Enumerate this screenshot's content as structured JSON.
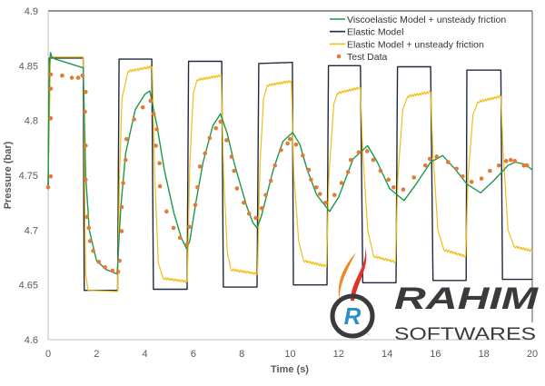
{
  "chart_data": {
    "type": "line",
    "title": "",
    "xlabel": "Time (s)",
    "ylabel": "Pressure (bar)",
    "xlim": [
      0,
      20
    ],
    "ylim": [
      4.6,
      4.9
    ],
    "xticks": [
      0,
      2,
      4,
      6,
      8,
      10,
      12,
      14,
      16,
      18,
      20
    ],
    "yticks": [
      4.6,
      4.65,
      4.7,
      4.75,
      4.8,
      4.85,
      4.9
    ],
    "ytick_labels": [
      "4.6",
      "4.65",
      "4.7",
      "4.75",
      "4.8",
      "4.85",
      "4.9"
    ],
    "grid": false,
    "legend_position": "top-right",
    "series": [
      {
        "name": "Viscoelastic Model + unsteady friction",
        "kind": "line",
        "color": "#1a9a4a",
        "points": [
          [
            0,
            4.74
          ],
          [
            0.05,
            4.85
          ],
          [
            0.1,
            4.862
          ],
          [
            0.15,
            4.858
          ],
          [
            0.3,
            4.856
          ],
          [
            1.45,
            4.848
          ],
          [
            1.55,
            4.75
          ],
          [
            1.7,
            4.7
          ],
          [
            2.0,
            4.672
          ],
          [
            2.4,
            4.664
          ],
          [
            2.85,
            4.66
          ],
          [
            3.0,
            4.72
          ],
          [
            3.2,
            4.77
          ],
          [
            3.6,
            4.81
          ],
          [
            4.0,
            4.824
          ],
          [
            4.2,
            4.827
          ],
          [
            4.5,
            4.795
          ],
          [
            4.8,
            4.755
          ],
          [
            5.2,
            4.715
          ],
          [
            5.5,
            4.693
          ],
          [
            5.72,
            4.683
          ],
          [
            5.85,
            4.69
          ],
          [
            6.1,
            4.725
          ],
          [
            6.4,
            4.762
          ],
          [
            6.8,
            4.795
          ],
          [
            7.12,
            4.806
          ],
          [
            7.4,
            4.788
          ],
          [
            7.7,
            4.76
          ],
          [
            8.2,
            4.722
          ],
          [
            8.45,
            4.707
          ],
          [
            8.63,
            4.702
          ],
          [
            8.8,
            4.712
          ],
          [
            9.3,
            4.755
          ],
          [
            9.7,
            4.781
          ],
          [
            10.1,
            4.789
          ],
          [
            10.4,
            4.778
          ],
          [
            10.7,
            4.755
          ],
          [
            11.1,
            4.732
          ],
          [
            11.63,
            4.717
          ],
          [
            12.0,
            4.73
          ],
          [
            12.6,
            4.765
          ],
          [
            13.2,
            4.777
          ],
          [
            13.6,
            4.762
          ],
          [
            14.1,
            4.738
          ],
          [
            14.7,
            4.727
          ],
          [
            15.2,
            4.742
          ],
          [
            15.8,
            4.762
          ],
          [
            16.3,
            4.768
          ],
          [
            16.8,
            4.756
          ],
          [
            17.3,
            4.742
          ],
          [
            17.87,
            4.734
          ],
          [
            18.4,
            4.745
          ],
          [
            19.0,
            4.759
          ],
          [
            19.3,
            4.762
          ],
          [
            19.7,
            4.76
          ],
          [
            20.0,
            4.755
          ]
        ]
      },
      {
        "name": "Elastic Model",
        "kind": "line",
        "color": "#1f2a3c",
        "points": [
          [
            0,
            4.74
          ],
          [
            0.05,
            4.857
          ],
          [
            1.45,
            4.857
          ],
          [
            1.49,
            4.645
          ],
          [
            2.87,
            4.645
          ],
          [
            2.93,
            4.856
          ],
          [
            4.28,
            4.856
          ],
          [
            4.35,
            4.646
          ],
          [
            5.74,
            4.646
          ],
          [
            5.8,
            4.854
          ],
          [
            7.17,
            4.854
          ],
          [
            7.24,
            4.648
          ],
          [
            8.63,
            4.648
          ],
          [
            8.7,
            4.852
          ],
          [
            10.09,
            4.853
          ],
          [
            10.13,
            4.65
          ],
          [
            11.52,
            4.65
          ],
          [
            11.58,
            4.85
          ],
          [
            12.9,
            4.85
          ],
          [
            13.0,
            4.652
          ],
          [
            14.37,
            4.652
          ],
          [
            14.43,
            4.849
          ],
          [
            15.8,
            4.849
          ],
          [
            15.9,
            4.654
          ],
          [
            17.27,
            4.654
          ],
          [
            17.3,
            4.846
          ],
          [
            18.7,
            4.846
          ],
          [
            18.77,
            4.655
          ],
          [
            20.0,
            4.655
          ]
        ]
      },
      {
        "name": "Elastic Model + unsteady friction",
        "kind": "line",
        "color": "#f2be1a",
        "ripple": {
          "amplitude": 0.002,
          "period": 0.1,
          "segments": [
            [
              3.3,
              4.3
            ],
            [
              4.75,
              5.75
            ],
            [
              6.15,
              7.15
            ],
            [
              7.55,
              8.65
            ],
            [
              9.05,
              10.05
            ],
            [
              10.55,
              11.5
            ],
            [
              11.95,
              12.9
            ],
            [
              13.45,
              14.35
            ],
            [
              14.85,
              15.8
            ],
            [
              16.35,
              17.25
            ],
            [
              17.75,
              18.7
            ],
            [
              19.25,
              20.0
            ]
          ]
        },
        "points": [
          [
            0,
            4.745
          ],
          [
            0.1,
            4.858
          ],
          [
            1.45,
            4.858
          ],
          [
            1.55,
            4.66
          ],
          [
            1.65,
            4.645
          ],
          [
            2.87,
            4.644
          ],
          [
            2.95,
            4.75
          ],
          [
            3.05,
            4.82
          ],
          [
            3.3,
            4.845
          ],
          [
            4.3,
            4.849
          ],
          [
            4.4,
            4.75
          ],
          [
            4.55,
            4.67
          ],
          [
            4.75,
            4.656
          ],
          [
            5.75,
            4.653
          ],
          [
            5.85,
            4.76
          ],
          [
            6.0,
            4.825
          ],
          [
            6.15,
            4.837
          ],
          [
            7.15,
            4.841
          ],
          [
            7.25,
            4.75
          ],
          [
            7.4,
            4.68
          ],
          [
            7.55,
            4.664
          ],
          [
            8.65,
            4.66
          ],
          [
            8.75,
            4.76
          ],
          [
            8.9,
            4.82
          ],
          [
            9.05,
            4.832
          ],
          [
            10.05,
            4.836
          ],
          [
            10.15,
            4.75
          ],
          [
            10.35,
            4.69
          ],
          [
            10.55,
            4.672
          ],
          [
            11.5,
            4.667
          ],
          [
            11.6,
            4.75
          ],
          [
            11.8,
            4.815
          ],
          [
            11.95,
            4.825
          ],
          [
            12.9,
            4.83
          ],
          [
            13.0,
            4.77
          ],
          [
            13.2,
            4.7
          ],
          [
            13.45,
            4.676
          ],
          [
            14.35,
            4.671
          ],
          [
            14.45,
            4.75
          ],
          [
            14.65,
            4.81
          ],
          [
            14.85,
            4.822
          ],
          [
            15.8,
            4.826
          ],
          [
            15.9,
            4.77
          ],
          [
            16.1,
            4.7
          ],
          [
            16.35,
            4.682
          ],
          [
            17.25,
            4.676
          ],
          [
            17.35,
            4.75
          ],
          [
            17.55,
            4.805
          ],
          [
            17.75,
            4.817
          ],
          [
            18.7,
            4.822
          ],
          [
            18.8,
            4.77
          ],
          [
            19.0,
            4.7
          ],
          [
            19.25,
            4.685
          ],
          [
            20.0,
            4.681
          ]
        ]
      },
      {
        "name": "Test Data",
        "kind": "scatter",
        "color": "#e07b39",
        "points": [
          [
            0,
            4.739
          ],
          [
            0.11,
            4.749
          ],
          [
            0.11,
            4.802
          ],
          [
            0.11,
            4.829
          ],
          [
            0.11,
            4.842
          ],
          [
            0.58,
            4.841
          ],
          [
            0.98,
            4.839
          ],
          [
            1.24,
            4.839
          ],
          [
            1.42,
            4.841
          ],
          [
            1.55,
            4.826
          ],
          [
            1.52,
            4.808
          ],
          [
            1.55,
            4.777
          ],
          [
            1.55,
            4.746
          ],
          [
            1.6,
            4.712
          ],
          [
            1.68,
            4.702
          ],
          [
            1.73,
            4.69
          ],
          [
            1.86,
            4.681
          ],
          [
            2.09,
            4.671
          ],
          [
            2.35,
            4.666
          ],
          [
            2.66,
            4.663
          ],
          [
            2.89,
            4.662
          ],
          [
            2.95,
            4.672
          ],
          [
            3.04,
            4.699
          ],
          [
            3.04,
            4.721
          ],
          [
            3.1,
            4.743
          ],
          [
            3.2,
            4.764
          ],
          [
            3.24,
            4.783
          ],
          [
            3.55,
            4.801
          ],
          [
            3.91,
            4.812
          ],
          [
            4.23,
            4.818
          ],
          [
            4.36,
            4.806
          ],
          [
            4.49,
            4.792
          ],
          [
            4.45,
            4.777
          ],
          [
            4.6,
            4.761
          ],
          [
            4.62,
            4.74
          ],
          [
            4.89,
            4.717
          ],
          [
            5.18,
            4.702
          ],
          [
            5.45,
            4.693
          ],
          [
            5.74,
            4.687
          ],
          [
            5.83,
            4.703
          ],
          [
            6.08,
            4.723
          ],
          [
            6.17,
            4.739
          ],
          [
            6.27,
            4.758
          ],
          [
            6.48,
            4.77
          ],
          [
            6.67,
            4.784
          ],
          [
            6.93,
            4.793
          ],
          [
            7.12,
            4.799
          ],
          [
            7.37,
            4.782
          ],
          [
            7.58,
            4.767
          ],
          [
            7.68,
            4.754
          ],
          [
            7.8,
            4.738
          ],
          [
            8.08,
            4.725
          ],
          [
            8.3,
            4.715
          ],
          [
            8.58,
            4.711
          ],
          [
            8.83,
            4.72
          ],
          [
            8.99,
            4.732
          ],
          [
            9.2,
            4.745
          ],
          [
            9.37,
            4.759
          ],
          [
            9.62,
            4.773
          ],
          [
            9.89,
            4.779
          ],
          [
            9.99,
            4.783
          ],
          [
            10.24,
            4.778
          ],
          [
            10.52,
            4.768
          ],
          [
            10.77,
            4.755
          ],
          [
            10.86,
            4.746
          ],
          [
            11.08,
            4.739
          ],
          [
            11.23,
            4.733
          ],
          [
            11.46,
            4.725
          ],
          [
            11.83,
            4.732
          ],
          [
            12.12,
            4.743
          ],
          [
            12.39,
            4.753
          ],
          [
            12.5,
            4.764
          ],
          [
            12.83,
            4.771
          ],
          [
            13.18,
            4.772
          ],
          [
            13.43,
            4.764
          ],
          [
            13.73,
            4.754
          ],
          [
            14.06,
            4.746
          ],
          [
            14.27,
            4.739
          ],
          [
            14.67,
            4.737
          ],
          [
            15.11,
            4.748
          ],
          [
            15.58,
            4.759
          ],
          [
            15.77,
            4.765
          ],
          [
            16.05,
            4.767
          ],
          [
            16.52,
            4.762
          ],
          [
            16.87,
            4.756
          ],
          [
            17.12,
            4.749
          ],
          [
            17.49,
            4.744
          ],
          [
            17.9,
            4.747
          ],
          [
            18.25,
            4.754
          ],
          [
            18.62,
            4.759
          ],
          [
            18.92,
            4.763
          ],
          [
            19.11,
            4.764
          ],
          [
            19.28,
            4.763
          ],
          [
            19.65,
            4.759
          ],
          [
            19.78,
            4.759
          ]
        ]
      }
    ]
  },
  "watermark": {
    "title": "RAHIM",
    "subtitle": "SOFTWARES",
    "emblem_letter": "R"
  }
}
